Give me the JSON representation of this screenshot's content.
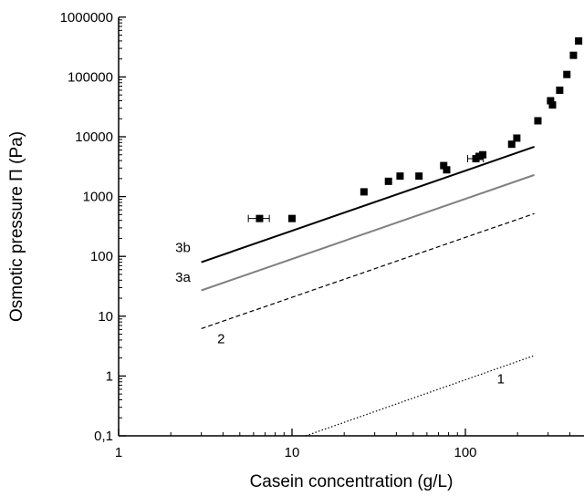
{
  "chart_data": {
    "type": "scatter",
    "xlabel": "Casein concentration (g/L)",
    "ylabel": "Osmotic pressure Π (Pa)",
    "x_scale": "log",
    "y_scale": "log",
    "xlim": [
      1,
      500
    ],
    "ylim": [
      0.1,
      1000000
    ],
    "x_ticks": [
      1,
      10,
      100
    ],
    "x_tick_labels": [
      "1",
      "10",
      "100"
    ],
    "y_ticks": [
      0.1,
      1,
      10,
      100,
      1000,
      10000,
      100000,
      1000000
    ],
    "y_tick_labels": [
      "0,1",
      "1",
      "10",
      "100",
      "1000",
      "10000",
      "100000",
      "1000000"
    ],
    "grid": false,
    "series": [
      {
        "style": "points",
        "marker": "filled-square",
        "color": "#000000",
        "points": [
          {
            "x": 6.5,
            "y": 430,
            "xerr": 0.9
          },
          {
            "x": 10,
            "y": 430
          },
          {
            "x": 26,
            "y": 1200
          },
          {
            "x": 36,
            "y": 1800
          },
          {
            "x": 42,
            "y": 2200
          },
          {
            "x": 54,
            "y": 2200
          },
          {
            "x": 75,
            "y": 3300
          },
          {
            "x": 78,
            "y": 2800
          },
          {
            "x": 115,
            "y": 4300,
            "xerr": 12
          },
          {
            "x": 120,
            "y": 4700
          },
          {
            "x": 126,
            "y": 5000
          },
          {
            "x": 185,
            "y": 7500
          },
          {
            "x": 198,
            "y": 9500
          },
          {
            "x": 262,
            "y": 18500
          },
          {
            "x": 310,
            "y": 40000
          },
          {
            "x": 318,
            "y": 34000
          },
          {
            "x": 350,
            "y": 60000
          },
          {
            "x": 385,
            "y": 110000
          },
          {
            "x": 420,
            "y": 230000
          },
          {
            "x": 450,
            "y": 400000
          }
        ]
      },
      {
        "name": "3b",
        "style": "line",
        "dash": "solid",
        "color": "#000000",
        "x": [
          3,
          250
        ],
        "y": [
          80,
          6800
        ]
      },
      {
        "name": "3a",
        "style": "line",
        "dash": "solid",
        "color": "#808080",
        "x": [
          3,
          250
        ],
        "y": [
          27,
          2300
        ]
      },
      {
        "name": "2",
        "style": "line",
        "dash": "dashed",
        "color": "#000000",
        "x": [
          3,
          250
        ],
        "y": [
          6.2,
          520
        ]
      },
      {
        "name": "1",
        "style": "line",
        "dash": "dotted",
        "color": "#000000",
        "x": [
          12,
          250
        ],
        "y": [
          0.1,
          2.2
        ]
      }
    ],
    "line_labels": [
      {
        "text": "3b",
        "x": 2.35,
        "y": 140
      },
      {
        "text": "3a",
        "x": 2.35,
        "y": 45
      },
      {
        "text": "2",
        "x": 3.9,
        "y": 4.2
      },
      {
        "text": "1",
        "x": 160,
        "y": 0.9
      }
    ]
  }
}
